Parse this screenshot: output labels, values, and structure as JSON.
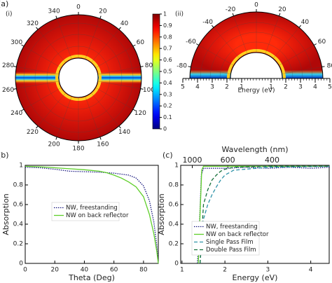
{
  "chart_data": [
    {
      "type": "polar-heatmap",
      "panel_label": "(a)",
      "label": "(i)",
      "colormap": "jet",
      "theta_ticks": [
        0,
        20,
        40,
        60,
        80,
        100,
        120,
        140,
        160,
        180,
        200,
        220,
        240,
        260,
        280,
        300,
        320,
        340
      ],
      "colorbar_ticks": [
        0,
        0.1,
        0.2,
        0.3,
        0.4,
        0.5,
        0.6,
        0.7,
        0.8,
        0.9,
        1
      ]
    },
    {
      "type": "polar-heatmap-half",
      "label": "(ii)",
      "colormap": "jet",
      "theta_ticks": [
        -80,
        -60,
        -40,
        -20,
        0,
        20,
        40,
        60,
        80
      ],
      "radial_label": "Energy (eV)",
      "radial_ticks": [
        {
          "value": -5,
          "label": "5"
        },
        {
          "value": -4,
          "label": "4"
        },
        {
          "value": -3,
          "label": "3"
        },
        {
          "value": -2,
          "label": "2"
        },
        {
          "value": -1,
          "label": "1"
        },
        1,
        2,
        3,
        4,
        5
      ]
    },
    {
      "type": "line",
      "panel_label": "(b)",
      "xlabel": "Theta (Deg)",
      "ylabel": "Absorption",
      "xlim": [
        0,
        90
      ],
      "ylim": [
        0,
        1
      ],
      "xticks": [
        0,
        20,
        40,
        60,
        80
      ],
      "yticks": [
        0,
        0.2,
        0.4,
        0.6,
        0.8,
        1
      ],
      "legend": "center-left",
      "series": [
        {
          "name": "NW, freestanding",
          "color": "#1a1a80",
          "style": "dotted",
          "x": [
            0,
            10,
            20,
            30,
            40,
            50,
            60,
            70,
            75,
            80,
            84,
            87,
            89,
            90
          ],
          "values": [
            0.98,
            0.975,
            0.96,
            0.94,
            0.935,
            0.93,
            0.92,
            0.9,
            0.87,
            0.79,
            0.64,
            0.42,
            0.18,
            0
          ]
        },
        {
          "name": "NW on back reflector",
          "color": "#5fcf2a",
          "style": "solid",
          "x": [
            0,
            10,
            20,
            30,
            40,
            50,
            55,
            60,
            65,
            70,
            75,
            80,
            84,
            87,
            89,
            90
          ],
          "values": [
            0.99,
            0.985,
            0.975,
            0.965,
            0.955,
            0.94,
            0.925,
            0.9,
            0.87,
            0.83,
            0.78,
            0.68,
            0.5,
            0.3,
            0.12,
            0
          ]
        }
      ]
    },
    {
      "type": "line",
      "panel_label": "(c)",
      "xlabel": "Energy (eV)",
      "ylabel": "Absorption",
      "x2label": "Wavelength (nm)",
      "xlim": [
        0.97,
        4.43
      ],
      "ylim": [
        0,
        1
      ],
      "xticks": [
        1,
        2,
        3,
        4
      ],
      "x2ticks": [
        1000,
        600,
        400
      ],
      "yticks": [
        0,
        0.2,
        0.4,
        0.6,
        0.8,
        1
      ],
      "legend": "lower-left",
      "series": [
        {
          "name": "NW, freestanding",
          "color": "#1a1a80",
          "style": "dotted",
          "x": [
            1.36,
            1.4,
            1.45,
            1.5,
            2,
            2.5,
            3,
            3.5,
            4,
            4.43
          ],
          "values": [
            0,
            0.3,
            0.9,
            0.97,
            0.97,
            0.98,
            0.97,
            0.98,
            0.97,
            0.98
          ]
        },
        {
          "name": "NW on back reflector",
          "color": "#5fcf2a",
          "style": "solid",
          "x": [
            1.38,
            1.42,
            1.46,
            1.5,
            2,
            2.5,
            3,
            3.5,
            4,
            4.43
          ],
          "values": [
            0,
            0.5,
            0.95,
            0.99,
            0.99,
            0.99,
            0.99,
            0.99,
            0.99,
            0.99
          ]
        },
        {
          "name": "Single Pass Film",
          "color": "#2f93a8",
          "style": "dashed",
          "x": [
            1.42,
            1.5,
            1.6,
            1.7,
            1.8,
            1.9,
            2,
            2.2,
            3,
            4.43
          ],
          "values": [
            0,
            0.45,
            0.6,
            0.7,
            0.78,
            0.85,
            0.9,
            0.95,
            0.98,
            0.99
          ]
        },
        {
          "name": "Double Pass Film",
          "color": "#16703a",
          "style": "dashed",
          "x": [
            1.42,
            1.5,
            1.6,
            1.7,
            1.8,
            1.9,
            2,
            2.2,
            3,
            4.43
          ],
          "values": [
            0,
            0.6,
            0.75,
            0.85,
            0.9,
            0.94,
            0.96,
            0.98,
            0.99,
            0.99
          ]
        }
      ]
    }
  ]
}
